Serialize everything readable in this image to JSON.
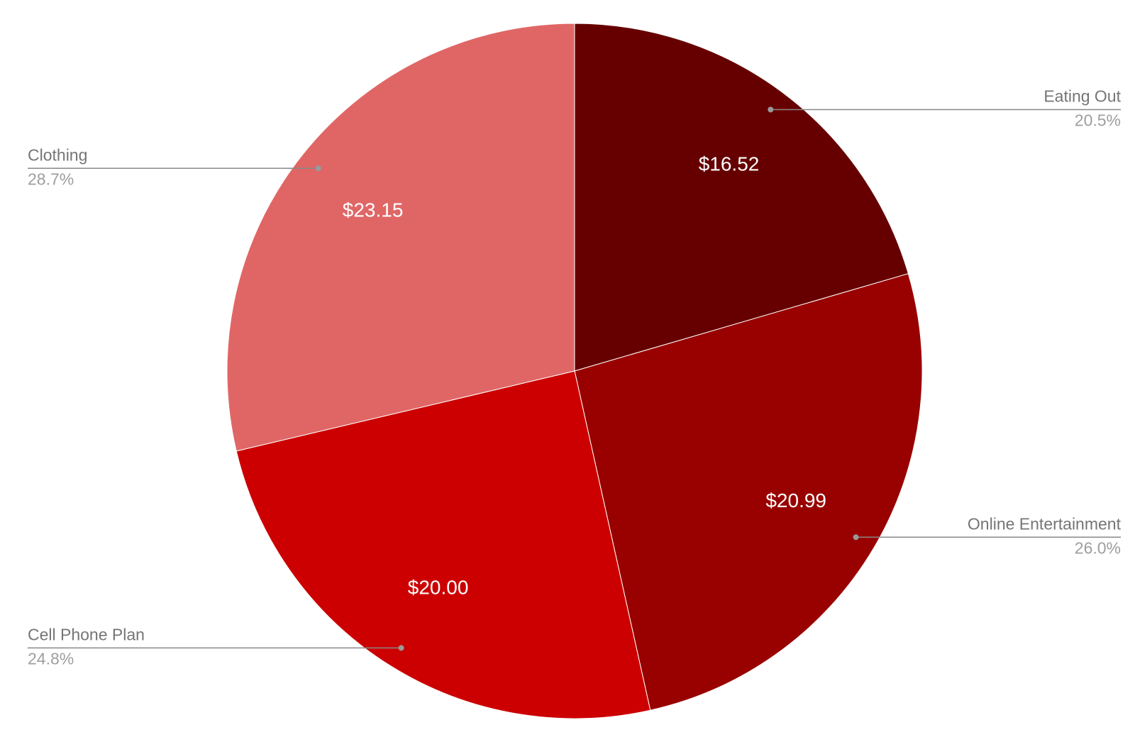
{
  "chart_data": {
    "type": "pie",
    "categories": [
      "Eating Out",
      "Online Entertainment",
      "Cell Phone Plan",
      "Clothing"
    ],
    "values": [
      16.52,
      20.99,
      20.0,
      23.15
    ],
    "value_labels": [
      "$16.52",
      "$20.99",
      "$20.00",
      "$23.15"
    ],
    "percent_labels": [
      "20.5%",
      "26.0%",
      "24.8%",
      "28.7%"
    ],
    "colors": [
      "#660000",
      "#990000",
      "#cc0000",
      "#e06666"
    ]
  }
}
